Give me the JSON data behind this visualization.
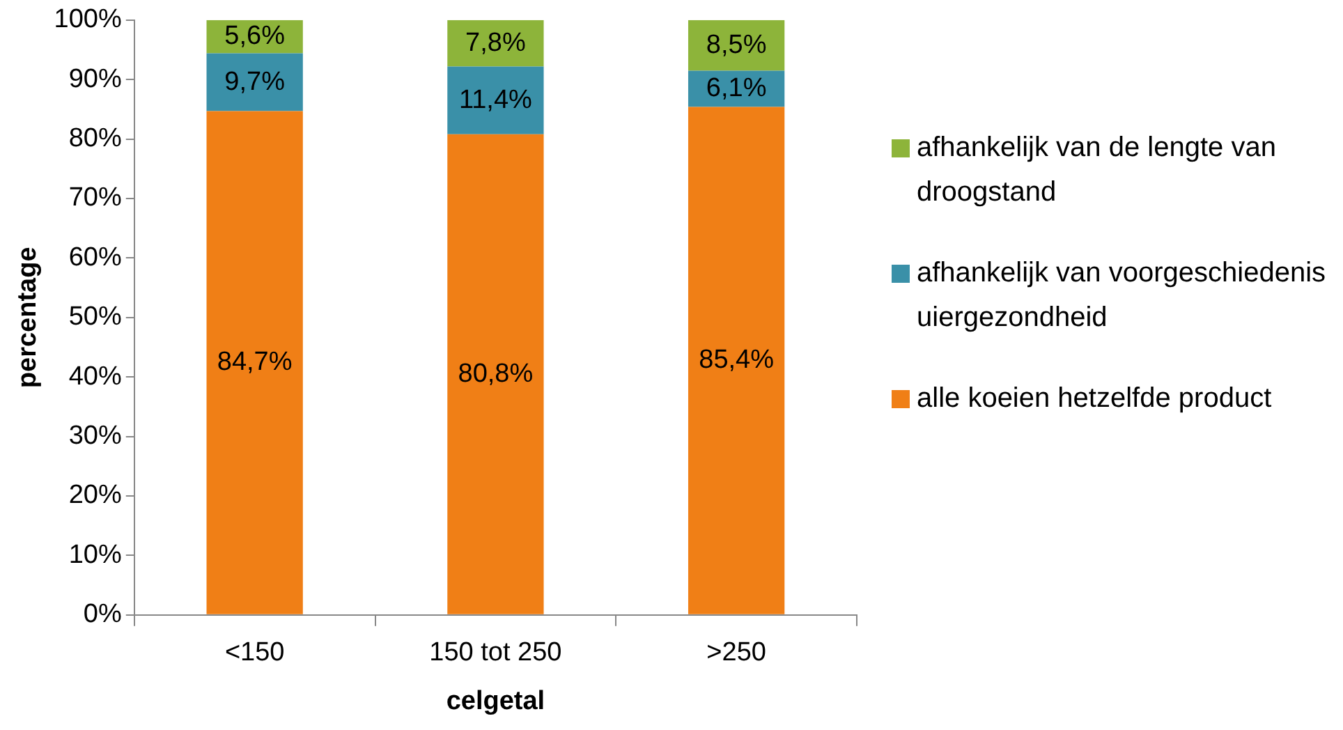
{
  "chart_data": {
    "type": "bar",
    "stacked": true,
    "xlabel": "celgetal",
    "ylabel": "percentage",
    "categories": [
      "<150",
      "150 tot 250",
      ">250"
    ],
    "ylim": [
      0,
      100
    ],
    "yticks": [
      {
        "value": 0,
        "label": "0%"
      },
      {
        "value": 10,
        "label": "10%"
      },
      {
        "value": 20,
        "label": "20%"
      },
      {
        "value": 30,
        "label": "30%"
      },
      {
        "value": 40,
        "label": "40%"
      },
      {
        "value": 50,
        "label": "50%"
      },
      {
        "value": 60,
        "label": "60%"
      },
      {
        "value": 70,
        "label": "70%"
      },
      {
        "value": 80,
        "label": "80%"
      },
      {
        "value": 90,
        "label": "90%"
      },
      {
        "value": 100,
        "label": "100%"
      }
    ],
    "grid": false,
    "legend": "right",
    "series": [
      {
        "name": "alle koeien hetzelfde product",
        "color": "#f07f16",
        "values": [
          84.7,
          80.8,
          85.4
        ],
        "value_labels": [
          "84,7%",
          "80,8%",
          "85,4%"
        ]
      },
      {
        "name": "afhankelijk van voorgeschiedenis uiergezondheid",
        "color": "#3a90a8",
        "values": [
          9.7,
          11.4,
          6.1
        ],
        "value_labels": [
          "9,7%",
          "11,4%",
          "6,1%"
        ]
      },
      {
        "name": "afhankelijk van de lengte van droogstand",
        "color": "#8db43a",
        "values": [
          5.6,
          7.8,
          8.5
        ],
        "value_labels": [
          "5,6%",
          "7,8%",
          "8,5%"
        ]
      }
    ]
  }
}
